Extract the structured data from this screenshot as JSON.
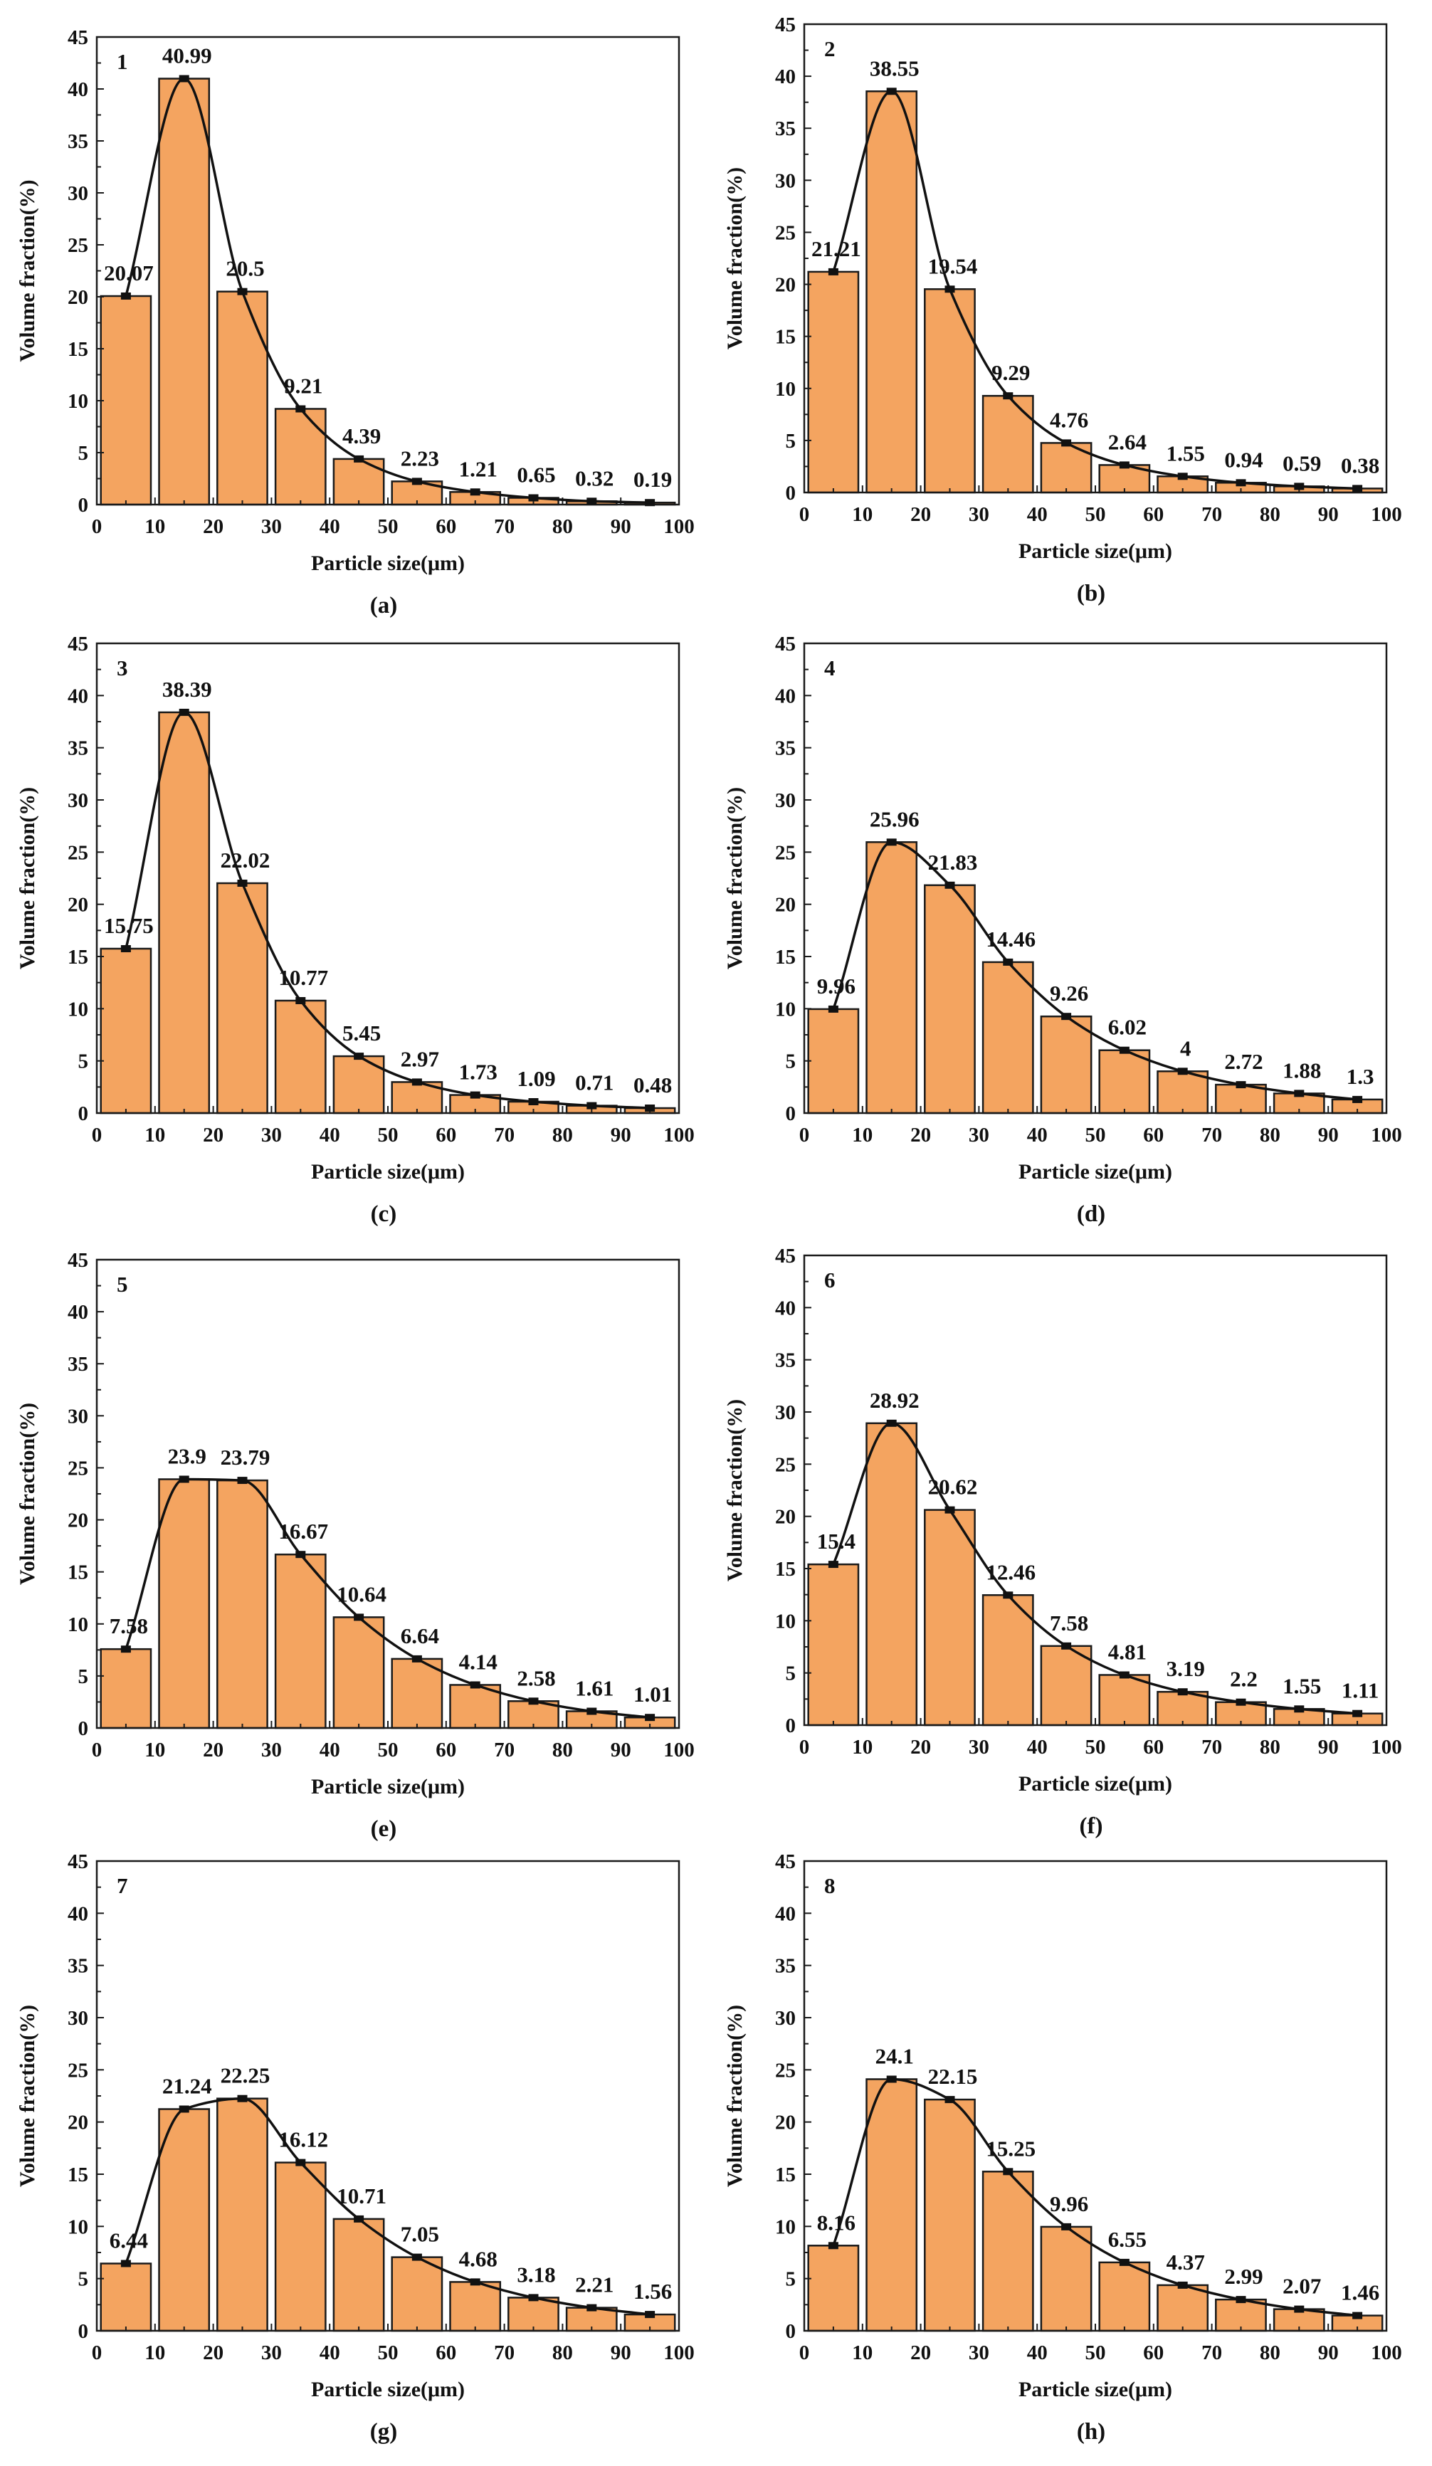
{
  "colors": {
    "bar_fill": "#F4A460",
    "bar_stroke": "#1a1a1a",
    "curve": "#111111"
  },
  "chart_data": [
    {
      "type": "bar",
      "panel_number": "1",
      "caption": "(a)",
      "xlabel": "Particle size(μm)",
      "ylabel": "Volume fraction(%)",
      "xlim": [
        0,
        100
      ],
      "ylim": [
        0,
        45
      ],
      "x_ticks": [
        "0",
        "10",
        "20",
        "30",
        "40",
        "50",
        "60",
        "70",
        "80",
        "90",
        "100"
      ],
      "y_ticks": [
        "0",
        "5",
        "10",
        "15",
        "20",
        "25",
        "30",
        "35",
        "40",
        "45"
      ],
      "x": [
        5,
        15,
        25,
        35,
        45,
        55,
        65,
        75,
        85,
        95
      ],
      "values": [
        20.07,
        40.99,
        20.5,
        9.21,
        4.39,
        2.23,
        1.21,
        0.65,
        0.32,
        0.19
      ],
      "labels": [
        "20.07",
        "40.99",
        "20.5",
        "9.21",
        "4.39",
        "2.23",
        "1.21",
        "0.65",
        "0.32",
        "0.19"
      ],
      "fit_curve": true
    },
    {
      "type": "bar",
      "panel_number": "2",
      "caption": "(b)",
      "xlabel": "Particle size(μm)",
      "ylabel": "Volume fraction(%)",
      "xlim": [
        0,
        100
      ],
      "ylim": [
        0,
        45
      ],
      "x_ticks": [
        "0",
        "10",
        "20",
        "30",
        "40",
        "50",
        "60",
        "70",
        "80",
        "90",
        "100"
      ],
      "y_ticks": [
        "0",
        "5",
        "10",
        "15",
        "20",
        "25",
        "30",
        "35",
        "40",
        "45"
      ],
      "x": [
        5,
        15,
        25,
        35,
        45,
        55,
        65,
        75,
        85,
        95
      ],
      "values": [
        21.21,
        38.55,
        19.54,
        9.29,
        4.76,
        2.64,
        1.55,
        0.94,
        0.59,
        0.38
      ],
      "labels": [
        "21.21",
        "38.55",
        "19.54",
        "9.29",
        "4.76",
        "2.64",
        "1.55",
        "0.94",
        "0.59",
        "0.38"
      ],
      "fit_curve": true
    },
    {
      "type": "bar",
      "panel_number": "3",
      "caption": "(c)",
      "xlabel": "Particle size(μm)",
      "ylabel": "Volume fraction(%)",
      "xlim": [
        0,
        100
      ],
      "ylim": [
        0,
        45
      ],
      "x_ticks": [
        "0",
        "10",
        "20",
        "30",
        "40",
        "50",
        "60",
        "70",
        "80",
        "90",
        "100"
      ],
      "y_ticks": [
        "0",
        "5",
        "10",
        "15",
        "20",
        "25",
        "30",
        "35",
        "40",
        "45"
      ],
      "x": [
        5,
        15,
        25,
        35,
        45,
        55,
        65,
        75,
        85,
        95
      ],
      "values": [
        15.75,
        38.39,
        22.02,
        10.77,
        5.45,
        2.97,
        1.73,
        1.09,
        0.71,
        0.48
      ],
      "labels": [
        "15.75",
        "38.39",
        "22.02",
        "10.77",
        "5.45",
        "2.97",
        "1.73",
        "1.09",
        "0.71",
        "0.48"
      ],
      "fit_curve": true
    },
    {
      "type": "bar",
      "panel_number": "4",
      "caption": "(d)",
      "xlabel": "Particle size(μm)",
      "ylabel": "Volume fraction(%)",
      "xlim": [
        0,
        100
      ],
      "ylim": [
        0,
        45
      ],
      "x_ticks": [
        "0",
        "10",
        "20",
        "30",
        "40",
        "50",
        "60",
        "70",
        "80",
        "90",
        "100"
      ],
      "y_ticks": [
        "0",
        "5",
        "10",
        "15",
        "20",
        "25",
        "30",
        "35",
        "40",
        "45"
      ],
      "x": [
        5,
        15,
        25,
        35,
        45,
        55,
        65,
        75,
        85,
        95
      ],
      "values": [
        9.96,
        25.96,
        21.83,
        14.46,
        9.26,
        6.02,
        4,
        2.72,
        1.88,
        1.3
      ],
      "labels": [
        "9.96",
        "25.96",
        "21.83",
        "14.46",
        "9.26",
        "6.02",
        "4",
        "2.72",
        "1.88",
        "1.3"
      ],
      "fit_curve": true
    },
    {
      "type": "bar",
      "panel_number": "5",
      "caption": "(e)",
      "xlabel": "Particle size(μm)",
      "ylabel": "Volume fraction(%)",
      "xlim": [
        0,
        100
      ],
      "ylim": [
        0,
        45
      ],
      "x_ticks": [
        "0",
        "10",
        "20",
        "30",
        "40",
        "50",
        "60",
        "70",
        "80",
        "90",
        "100"
      ],
      "y_ticks": [
        "0",
        "5",
        "10",
        "15",
        "20",
        "25",
        "30",
        "35",
        "40",
        "45"
      ],
      "x": [
        5,
        15,
        25,
        35,
        45,
        55,
        65,
        75,
        85,
        95
      ],
      "values": [
        7.58,
        23.9,
        23.79,
        16.67,
        10.64,
        6.64,
        4.14,
        2.58,
        1.61,
        1.01
      ],
      "labels": [
        "7.58",
        "23.9",
        "23.79",
        "16.67",
        "10.64",
        "6.64",
        "4.14",
        "2.58",
        "1.61",
        "1.01"
      ],
      "fit_curve": true
    },
    {
      "type": "bar",
      "panel_number": "6",
      "caption": "(f)",
      "xlabel": "Particle size(μm)",
      "ylabel": "Volume fraction(%)",
      "xlim": [
        0,
        100
      ],
      "ylim": [
        0,
        45
      ],
      "x_ticks": [
        "0",
        "10",
        "20",
        "30",
        "40",
        "50",
        "60",
        "70",
        "80",
        "90",
        "100"
      ],
      "y_ticks": [
        "0",
        "5",
        "10",
        "15",
        "20",
        "25",
        "30",
        "35",
        "40",
        "45"
      ],
      "x": [
        5,
        15,
        25,
        35,
        45,
        55,
        65,
        75,
        85,
        95
      ],
      "values": [
        15.4,
        28.92,
        20.62,
        12.46,
        7.58,
        4.81,
        3.19,
        2.2,
        1.55,
        1.11
      ],
      "labels": [
        "15.4",
        "28.92",
        "20.62",
        "12.46",
        "7.58",
        "4.81",
        "3.19",
        "2.2",
        "1.55",
        "1.11"
      ],
      "fit_curve": true
    },
    {
      "type": "bar",
      "panel_number": "7",
      "caption": "(g)",
      "xlabel": "Particle size(μm)",
      "ylabel": "Volume fraction(%)",
      "xlim": [
        0,
        100
      ],
      "ylim": [
        0,
        45
      ],
      "x_ticks": [
        "0",
        "10",
        "20",
        "30",
        "40",
        "50",
        "60",
        "70",
        "80",
        "90",
        "100"
      ],
      "y_ticks": [
        "0",
        "5",
        "10",
        "15",
        "20",
        "25",
        "30",
        "35",
        "40",
        "45"
      ],
      "x": [
        5,
        15,
        25,
        35,
        45,
        55,
        65,
        75,
        85,
        95
      ],
      "values": [
        6.44,
        21.24,
        22.25,
        16.12,
        10.71,
        7.05,
        4.68,
        3.18,
        2.21,
        1.56
      ],
      "labels": [
        "6.44",
        "21.24",
        "22.25",
        "16.12",
        "10.71",
        "7.05",
        "4.68",
        "3.18",
        "2.21",
        "1.56"
      ],
      "fit_curve": true
    },
    {
      "type": "bar",
      "panel_number": "8",
      "caption": "(h)",
      "xlabel": "Particle size(μm)",
      "ylabel": "Volume fraction(%)",
      "xlim": [
        0,
        100
      ],
      "ylim": [
        0,
        45
      ],
      "x_ticks": [
        "0",
        "10",
        "20",
        "30",
        "40",
        "50",
        "60",
        "70",
        "80",
        "90",
        "100"
      ],
      "y_ticks": [
        "0",
        "5",
        "10",
        "15",
        "20",
        "25",
        "30",
        "35",
        "40",
        "45"
      ],
      "x": [
        5,
        15,
        25,
        35,
        45,
        55,
        65,
        75,
        85,
        95
      ],
      "values": [
        8.16,
        24.1,
        22.15,
        15.25,
        9.96,
        6.55,
        4.37,
        2.99,
        2.07,
        1.46
      ],
      "labels": [
        "8.16",
        "24.1",
        "22.15",
        "15.25",
        "9.96",
        "6.55",
        "4.37",
        "2.99",
        "2.07",
        "1.46"
      ],
      "fit_curve": true
    }
  ]
}
